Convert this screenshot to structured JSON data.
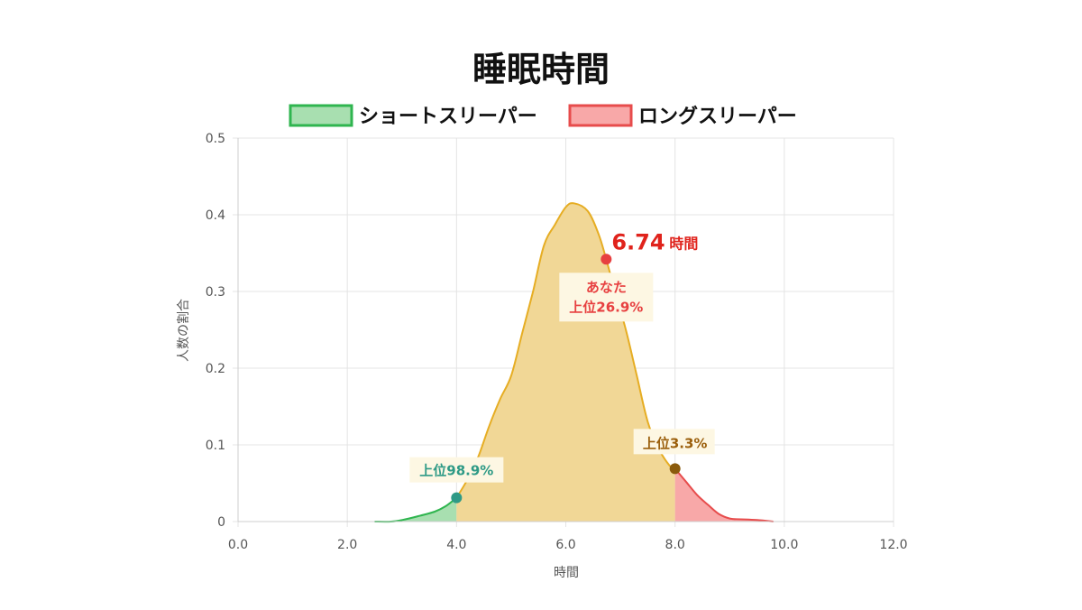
{
  "chart_data": {
    "type": "area",
    "title": "睡眠時間",
    "xlabel": "時間",
    "ylabel": "人数の割合",
    "xlim": [
      0,
      12
    ],
    "ylim": [
      0,
      0.5
    ],
    "x_ticks": [
      "0.0",
      "2.0",
      "4.0",
      "6.0",
      "8.0",
      "10.0",
      "12.0"
    ],
    "y_ticks": [
      "0",
      "0.1",
      "0.2",
      "0.3",
      "0.4",
      "0.5"
    ],
    "grid": true,
    "legend_position": "top",
    "legend": [
      {
        "label": "ショートスリーパー",
        "fill": "#a8dfb0",
        "stroke": "#2fb54f"
      },
      {
        "label": "ロングスリーパー",
        "fill": "#f8a8a8",
        "stroke": "#e74c4c"
      }
    ],
    "colors": {
      "main_fill": "#f1d796",
      "main_stroke": "#e6ad23",
      "short_fill": "#a8dfb0",
      "short_stroke": "#2fb54f",
      "long_fill": "#f8a8a8",
      "long_stroke": "#e74c4c"
    },
    "curve": [
      [
        2.5,
        0.0
      ],
      [
        2.8,
        0.0
      ],
      [
        3.0,
        0.002
      ],
      [
        3.3,
        0.007
      ],
      [
        3.6,
        0.013
      ],
      [
        3.8,
        0.02
      ],
      [
        4.0,
        0.031
      ],
      [
        4.2,
        0.055
      ],
      [
        4.4,
        0.085
      ],
      [
        4.6,
        0.125
      ],
      [
        4.8,
        0.16
      ],
      [
        5.0,
        0.19
      ],
      [
        5.2,
        0.245
      ],
      [
        5.4,
        0.3
      ],
      [
        5.6,
        0.36
      ],
      [
        5.8,
        0.387
      ],
      [
        6.0,
        0.41
      ],
      [
        6.15,
        0.415
      ],
      [
        6.4,
        0.405
      ],
      [
        6.6,
        0.375
      ],
      [
        6.74,
        0.342
      ],
      [
        6.9,
        0.3
      ],
      [
        7.1,
        0.25
      ],
      [
        7.3,
        0.19
      ],
      [
        7.5,
        0.13
      ],
      [
        7.7,
        0.095
      ],
      [
        7.9,
        0.073
      ],
      [
        8.0,
        0.069
      ],
      [
        8.2,
        0.052
      ],
      [
        8.4,
        0.035
      ],
      [
        8.6,
        0.022
      ],
      [
        8.8,
        0.01
      ],
      [
        9.0,
        0.004
      ],
      [
        9.2,
        0.003
      ],
      [
        9.5,
        0.002
      ],
      [
        9.8,
        0.0
      ]
    ],
    "short_threshold": 4.0,
    "long_threshold": 8.0,
    "markers": [
      {
        "name": "short-marker",
        "x": 4.0,
        "y": 0.031,
        "color": "#2e9a86",
        "label": "上位98.9%",
        "label_color": "#2e9a86"
      },
      {
        "name": "long-marker",
        "x": 8.0,
        "y": 0.069,
        "color": "#8a5a0c",
        "label": "上位3.3%",
        "label_color": "#9b5f0c"
      },
      {
        "name": "you-marker",
        "x": 6.74,
        "y": 0.342,
        "color": "#e74040",
        "label_line1": "あなた",
        "label_line2": "上位26.9%",
        "label_color": "#e74040"
      }
    ],
    "you_value": "6.74",
    "you_unit": "時間"
  }
}
